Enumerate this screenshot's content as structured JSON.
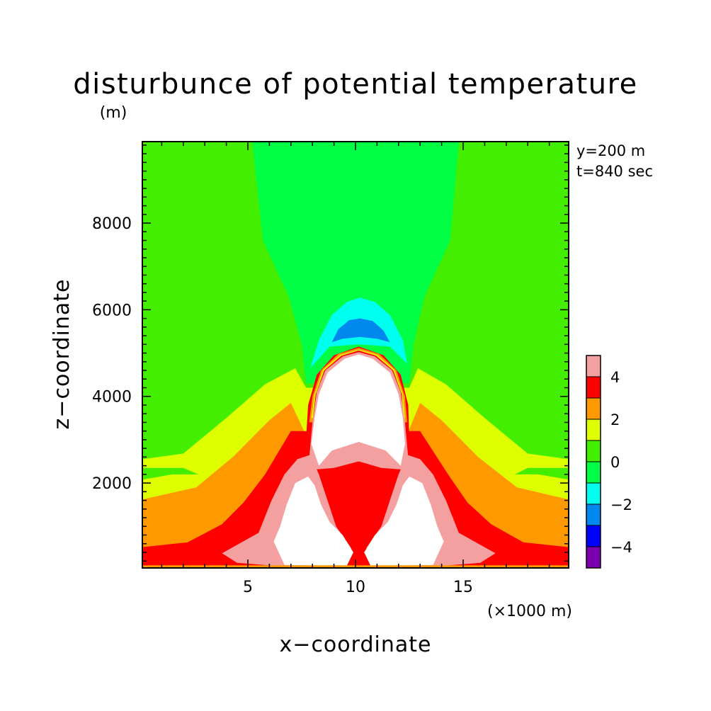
{
  "chart_data": {
    "type": "heatmap",
    "title": "disturbunce of potential temperature",
    "ylabel": "z−coordinate",
    "yunit": "(m)",
    "xlabel": "x−coordinate",
    "xunit": "(×1000 m)",
    "annotations": [
      "y=200 m",
      "t=840 sec"
    ],
    "xlim": [
      0.1,
      19.9
    ],
    "ylim": [
      40,
      9880
    ],
    "x_ticks": [
      {
        "value": 5,
        "label": "5"
      },
      {
        "value": 10,
        "label": "10"
      },
      {
        "value": 15,
        "label": "15"
      }
    ],
    "y_ticks": [
      {
        "value": 2000,
        "label": "2000"
      },
      {
        "value": 4000,
        "label": "4000"
      },
      {
        "value": 6000,
        "label": "6000"
      },
      {
        "value": 8000,
        "label": "8000"
      }
    ],
    "colorbar": {
      "range": [
        -5,
        5
      ],
      "labels": [
        {
          "value": 4,
          "label": "4"
        },
        {
          "value": 2,
          "label": "2"
        },
        {
          "value": 0,
          "label": "0"
        },
        {
          "value": -2,
          "label": "−2"
        },
        {
          "value": -4,
          "label": "−4"
        }
      ],
      "levels": [
        {
          "min": 4,
          "max": 5,
          "color": "#f5a0a0"
        },
        {
          "min": 3,
          "max": 4,
          "color": "#ff0000"
        },
        {
          "min": 2,
          "max": 3,
          "color": "#ff9900"
        },
        {
          "min": 1,
          "max": 2,
          "color": "#ddff00"
        },
        {
          "min": 0,
          "max": 1,
          "color": "#44ee00"
        },
        {
          "min": -1,
          "max": 0,
          "color": "#00ff44"
        },
        {
          "min": -2,
          "max": -1,
          "color": "#00ffee"
        },
        {
          "min": -3,
          "max": -2,
          "color": "#0088ee"
        },
        {
          "min": -4,
          "max": -3,
          "color": "#0000ff"
        },
        {
          "min": -5,
          "max": -4,
          "color": "#7a00b0"
        }
      ]
    },
    "over_color": "#ffffff",
    "field_regions": [
      {
        "name": "background",
        "level": 0.5,
        "points": [
          [
            0.1,
            40
          ],
          [
            19.9,
            40
          ],
          [
            19.9,
            9880
          ],
          [
            0.1,
            9880
          ]
        ]
      },
      {
        "name": "central-plume",
        "level": -0.5,
        "points": [
          [
            5.2,
            9880
          ],
          [
            14.8,
            9880
          ],
          [
            14.4,
            7600
          ],
          [
            13.2,
            6300
          ],
          [
            12.7,
            5200
          ],
          [
            12.5,
            4300
          ],
          [
            7.7,
            4300
          ],
          [
            7.5,
            5200
          ],
          [
            6.9,
            6300
          ],
          [
            5.7,
            7600
          ]
        ]
      },
      {
        "name": "layer-1-2",
        "level": 1.5,
        "points": [
          [
            0.1,
            40
          ],
          [
            19.9,
            40
          ],
          [
            19.9,
            2550
          ],
          [
            18.0,
            2680
          ],
          [
            16.0,
            3500
          ],
          [
            14.2,
            4280
          ],
          [
            12.9,
            4650
          ],
          [
            12.5,
            4200
          ],
          [
            7.7,
            4200
          ],
          [
            7.2,
            4650
          ],
          [
            5.8,
            4280
          ],
          [
            4.0,
            3500
          ],
          [
            2.0,
            2680
          ],
          [
            0.1,
            2550
          ]
        ]
      },
      {
        "name": "layer-2-3",
        "level": 2.5,
        "points": [
          [
            0.1,
            40
          ],
          [
            19.9,
            40
          ],
          [
            19.9,
            1620
          ],
          [
            17.5,
            1900
          ],
          [
            15.7,
            2600
          ],
          [
            14.0,
            3450
          ],
          [
            13.0,
            3850
          ],
          [
            12.3,
            3000
          ],
          [
            7.8,
            3000
          ],
          [
            7.0,
            3850
          ],
          [
            6.0,
            3450
          ],
          [
            4.3,
            2600
          ],
          [
            2.6,
            1900
          ],
          [
            0.1,
            1620
          ]
        ]
      },
      {
        "name": "layer-3-4",
        "level": 3.5,
        "points": [
          [
            0.1,
            40
          ],
          [
            19.9,
            40
          ],
          [
            19.9,
            520
          ],
          [
            17.8,
            630
          ],
          [
            16.3,
            1050
          ],
          [
            15.2,
            1550
          ],
          [
            14.3,
            2200
          ],
          [
            13.0,
            3200
          ],
          [
            12.2,
            3200
          ],
          [
            10.2,
            2500
          ],
          [
            8.0,
            3200
          ],
          [
            7.0,
            3200
          ],
          [
            5.8,
            2200
          ],
          [
            4.8,
            1550
          ],
          [
            3.8,
            1050
          ],
          [
            2.2,
            630
          ],
          [
            0.1,
            520
          ]
        ]
      },
      {
        "name": "dome-red",
        "level": 3.5,
        "points": [
          [
            7.7,
            3000
          ],
          [
            7.8,
            3800
          ],
          [
            8.2,
            4500
          ],
          [
            9.0,
            4950
          ],
          [
            10.15,
            5150
          ],
          [
            11.3,
            4950
          ],
          [
            12.1,
            4500
          ],
          [
            12.45,
            3800
          ],
          [
            12.5,
            3000
          ]
        ]
      },
      {
        "name": "dome-orange",
        "level": 2.5,
        "points": [
          [
            7.85,
            3400
          ],
          [
            8.0,
            4000
          ],
          [
            8.4,
            4600
          ],
          [
            9.2,
            4980
          ],
          [
            10.15,
            5120
          ],
          [
            11.1,
            4980
          ],
          [
            11.9,
            4600
          ],
          [
            12.3,
            4000
          ],
          [
            12.4,
            3400
          ]
        ]
      },
      {
        "name": "dome-yellow",
        "level": 1.5,
        "points": [
          [
            7.95,
            3500
          ],
          [
            8.1,
            4050
          ],
          [
            8.5,
            4620
          ],
          [
            9.3,
            4960
          ],
          [
            10.15,
            5080
          ],
          [
            11.0,
            4960
          ],
          [
            11.8,
            4620
          ],
          [
            12.2,
            4050
          ],
          [
            12.3,
            3500
          ]
        ]
      },
      {
        "name": "dome-red-inner",
        "level": 3.5,
        "points": [
          [
            8.0,
            3400
          ],
          [
            8.15,
            4050
          ],
          [
            8.55,
            4600
          ],
          [
            9.35,
            4940
          ],
          [
            10.15,
            5060
          ],
          [
            10.95,
            4940
          ],
          [
            11.75,
            4600
          ],
          [
            12.15,
            4050
          ],
          [
            12.25,
            3400
          ]
        ]
      },
      {
        "name": "dome-pink",
        "level": 4.5,
        "points": [
          [
            7.8,
            2300
          ],
          [
            8.0,
            3400
          ],
          [
            8.2,
            4100
          ],
          [
            8.6,
            4600
          ],
          [
            9.4,
            4920
          ],
          [
            10.15,
            5020
          ],
          [
            10.9,
            4920
          ],
          [
            11.7,
            4600
          ],
          [
            12.1,
            4100
          ],
          [
            12.3,
            3400
          ],
          [
            12.5,
            2300
          ],
          [
            11.2,
            2350
          ],
          [
            10.15,
            2500
          ],
          [
            9.0,
            2350
          ]
        ]
      },
      {
        "name": "dome-core",
        "level": 6.0,
        "points": [
          [
            7.95,
            2900
          ],
          [
            8.1,
            3500
          ],
          [
            8.3,
            4050
          ],
          [
            8.7,
            4550
          ],
          [
            9.5,
            4870
          ],
          [
            10.15,
            4970
          ],
          [
            10.8,
            4870
          ],
          [
            11.6,
            4550
          ],
          [
            12.0,
            4050
          ],
          [
            12.2,
            3500
          ],
          [
            12.3,
            2900
          ],
          [
            12.1,
            2400
          ],
          [
            11.4,
            2750
          ],
          [
            10.15,
            2950
          ],
          [
            8.9,
            2750
          ],
          [
            8.3,
            2400
          ]
        ]
      },
      {
        "name": "neg-outer",
        "level": -1.5,
        "points": [
          [
            7.9,
            4650
          ],
          [
            8.3,
            5300
          ],
          [
            8.9,
            5880
          ],
          [
            9.6,
            6180
          ],
          [
            10.2,
            6280
          ],
          [
            10.9,
            6180
          ],
          [
            11.6,
            5880
          ],
          [
            12.2,
            5300
          ],
          [
            12.4,
            4750
          ],
          [
            11.6,
            5150
          ],
          [
            10.15,
            5200
          ],
          [
            8.8,
            5150
          ]
        ]
      },
      {
        "name": "neg-core",
        "level": -2.5,
        "points": [
          [
            8.9,
            5250
          ],
          [
            9.2,
            5550
          ],
          [
            9.7,
            5760
          ],
          [
            10.2,
            5800
          ],
          [
            10.8,
            5740
          ],
          [
            11.3,
            5520
          ],
          [
            11.6,
            5250
          ],
          [
            11.0,
            5330
          ],
          [
            10.2,
            5370
          ],
          [
            9.4,
            5330
          ]
        ]
      },
      {
        "name": "lobe-left-pink",
        "level": 4.5,
        "points": [
          [
            3.8,
            380
          ],
          [
            4.5,
            160
          ],
          [
            6.5,
            80
          ],
          [
            9.5,
            80
          ],
          [
            9.8,
            500
          ],
          [
            9.1,
            1000
          ],
          [
            8.7,
            1600
          ],
          [
            8.3,
            2200
          ],
          [
            7.9,
            2650
          ],
          [
            7.3,
            2550
          ],
          [
            6.7,
            2200
          ],
          [
            6.1,
            1600
          ],
          [
            5.5,
            850
          ]
        ]
      },
      {
        "name": "lobe-left-white",
        "level": 6.0,
        "points": [
          [
            6.2,
            650
          ],
          [
            6.7,
            110
          ],
          [
            8.5,
            90
          ],
          [
            9.6,
            90
          ],
          [
            9.9,
            400
          ],
          [
            9.4,
            800
          ],
          [
            8.8,
            1100
          ],
          [
            8.4,
            1500
          ],
          [
            8.1,
            1950
          ],
          [
            7.8,
            2150
          ],
          [
            7.2,
            2000
          ],
          [
            6.8,
            1500
          ],
          [
            6.5,
            1000
          ]
        ]
      },
      {
        "name": "lobe-right-pink",
        "level": 4.5,
        "points": [
          [
            16.5,
            380
          ],
          [
            15.8,
            160
          ],
          [
            13.8,
            80
          ],
          [
            10.8,
            80
          ],
          [
            10.5,
            500
          ],
          [
            11.2,
            1000
          ],
          [
            11.6,
            1600
          ],
          [
            12.0,
            2200
          ],
          [
            12.4,
            2650
          ],
          [
            13.0,
            2550
          ],
          [
            13.6,
            2200
          ],
          [
            14.2,
            1600
          ],
          [
            14.8,
            850
          ]
        ]
      },
      {
        "name": "lobe-right-white",
        "level": 6.0,
        "points": [
          [
            14.1,
            650
          ],
          [
            13.6,
            110
          ],
          [
            11.8,
            90
          ],
          [
            10.7,
            90
          ],
          [
            10.4,
            400
          ],
          [
            10.9,
            800
          ],
          [
            11.5,
            1100
          ],
          [
            11.9,
            1500
          ],
          [
            12.2,
            1950
          ],
          [
            12.5,
            2150
          ],
          [
            13.1,
            2000
          ],
          [
            13.5,
            1500
          ],
          [
            13.8,
            1000
          ]
        ]
      },
      {
        "name": "bottom-strip",
        "level": 2.5,
        "points": [
          [
            0.1,
            40
          ],
          [
            19.9,
            40
          ],
          [
            19.9,
            100
          ],
          [
            0.1,
            100
          ]
        ]
      },
      {
        "name": "left-tongue",
        "level": 0.5,
        "points": [
          [
            0.1,
            2080
          ],
          [
            1.5,
            2200
          ],
          [
            2.7,
            2200
          ],
          [
            2.0,
            2350
          ],
          [
            0.1,
            2350
          ]
        ]
      },
      {
        "name": "right-tongue",
        "level": 0.5,
        "points": [
          [
            19.9,
            2080
          ],
          [
            18.5,
            2200
          ],
          [
            17.4,
            2200
          ],
          [
            18.0,
            2350
          ],
          [
            19.9,
            2350
          ]
        ]
      }
    ]
  }
}
